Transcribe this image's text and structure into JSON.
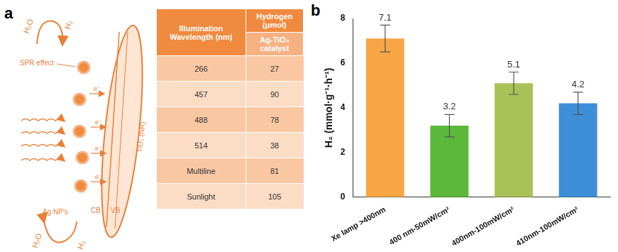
{
  "panel_labels": [
    "a",
    "b"
  ],
  "diagram": {
    "top_reactant": "H₂O",
    "top_product": "H₂",
    "bottom_reactant": "H₂O",
    "bottom_product": "H₂",
    "spr_label": "SPR effect",
    "electron_labels": [
      "e⁻",
      "e⁻",
      "e⁻",
      "e⁻"
    ],
    "particle_label": "Ag NP's",
    "cb_label": "CB",
    "vb_label": "VB",
    "rod_label": "TiO₂ (NR)"
  },
  "table": {
    "header": [
      "Illumination Wavelength (nm)",
      "Hydrogen (μmol)"
    ],
    "subheader": "Ag-TiO₂ catalyst",
    "rows": [
      [
        266,
        27
      ],
      [
        457,
        90
      ],
      [
        488,
        78
      ],
      [
        514,
        38
      ],
      [
        "Multiline",
        81
      ],
      [
        "Sunlight",
        105
      ]
    ]
  },
  "chart_data": {
    "type": "bar",
    "categories": [
      "Xe lamp >400nm",
      "400 nm-50mW/cm²",
      "400nm-100mW/cm²",
      "410nm-100mW/cm²"
    ],
    "values": [
      7.1,
      3.2,
      5.1,
      4.2
    ],
    "errors": [
      0.6,
      0.5,
      0.5,
      0.5
    ],
    "colors": [
      "#f7a545",
      "#5cb83a",
      "#a8c257",
      "#3d8fd8"
    ],
    "y_label": "H₂ (mmol·g⁻¹·h⁻¹)",
    "ylim": [
      0,
      8
    ],
    "yticks": [
      0,
      2,
      4,
      6,
      8
    ],
    "grid": false,
    "data_labels": true
  }
}
